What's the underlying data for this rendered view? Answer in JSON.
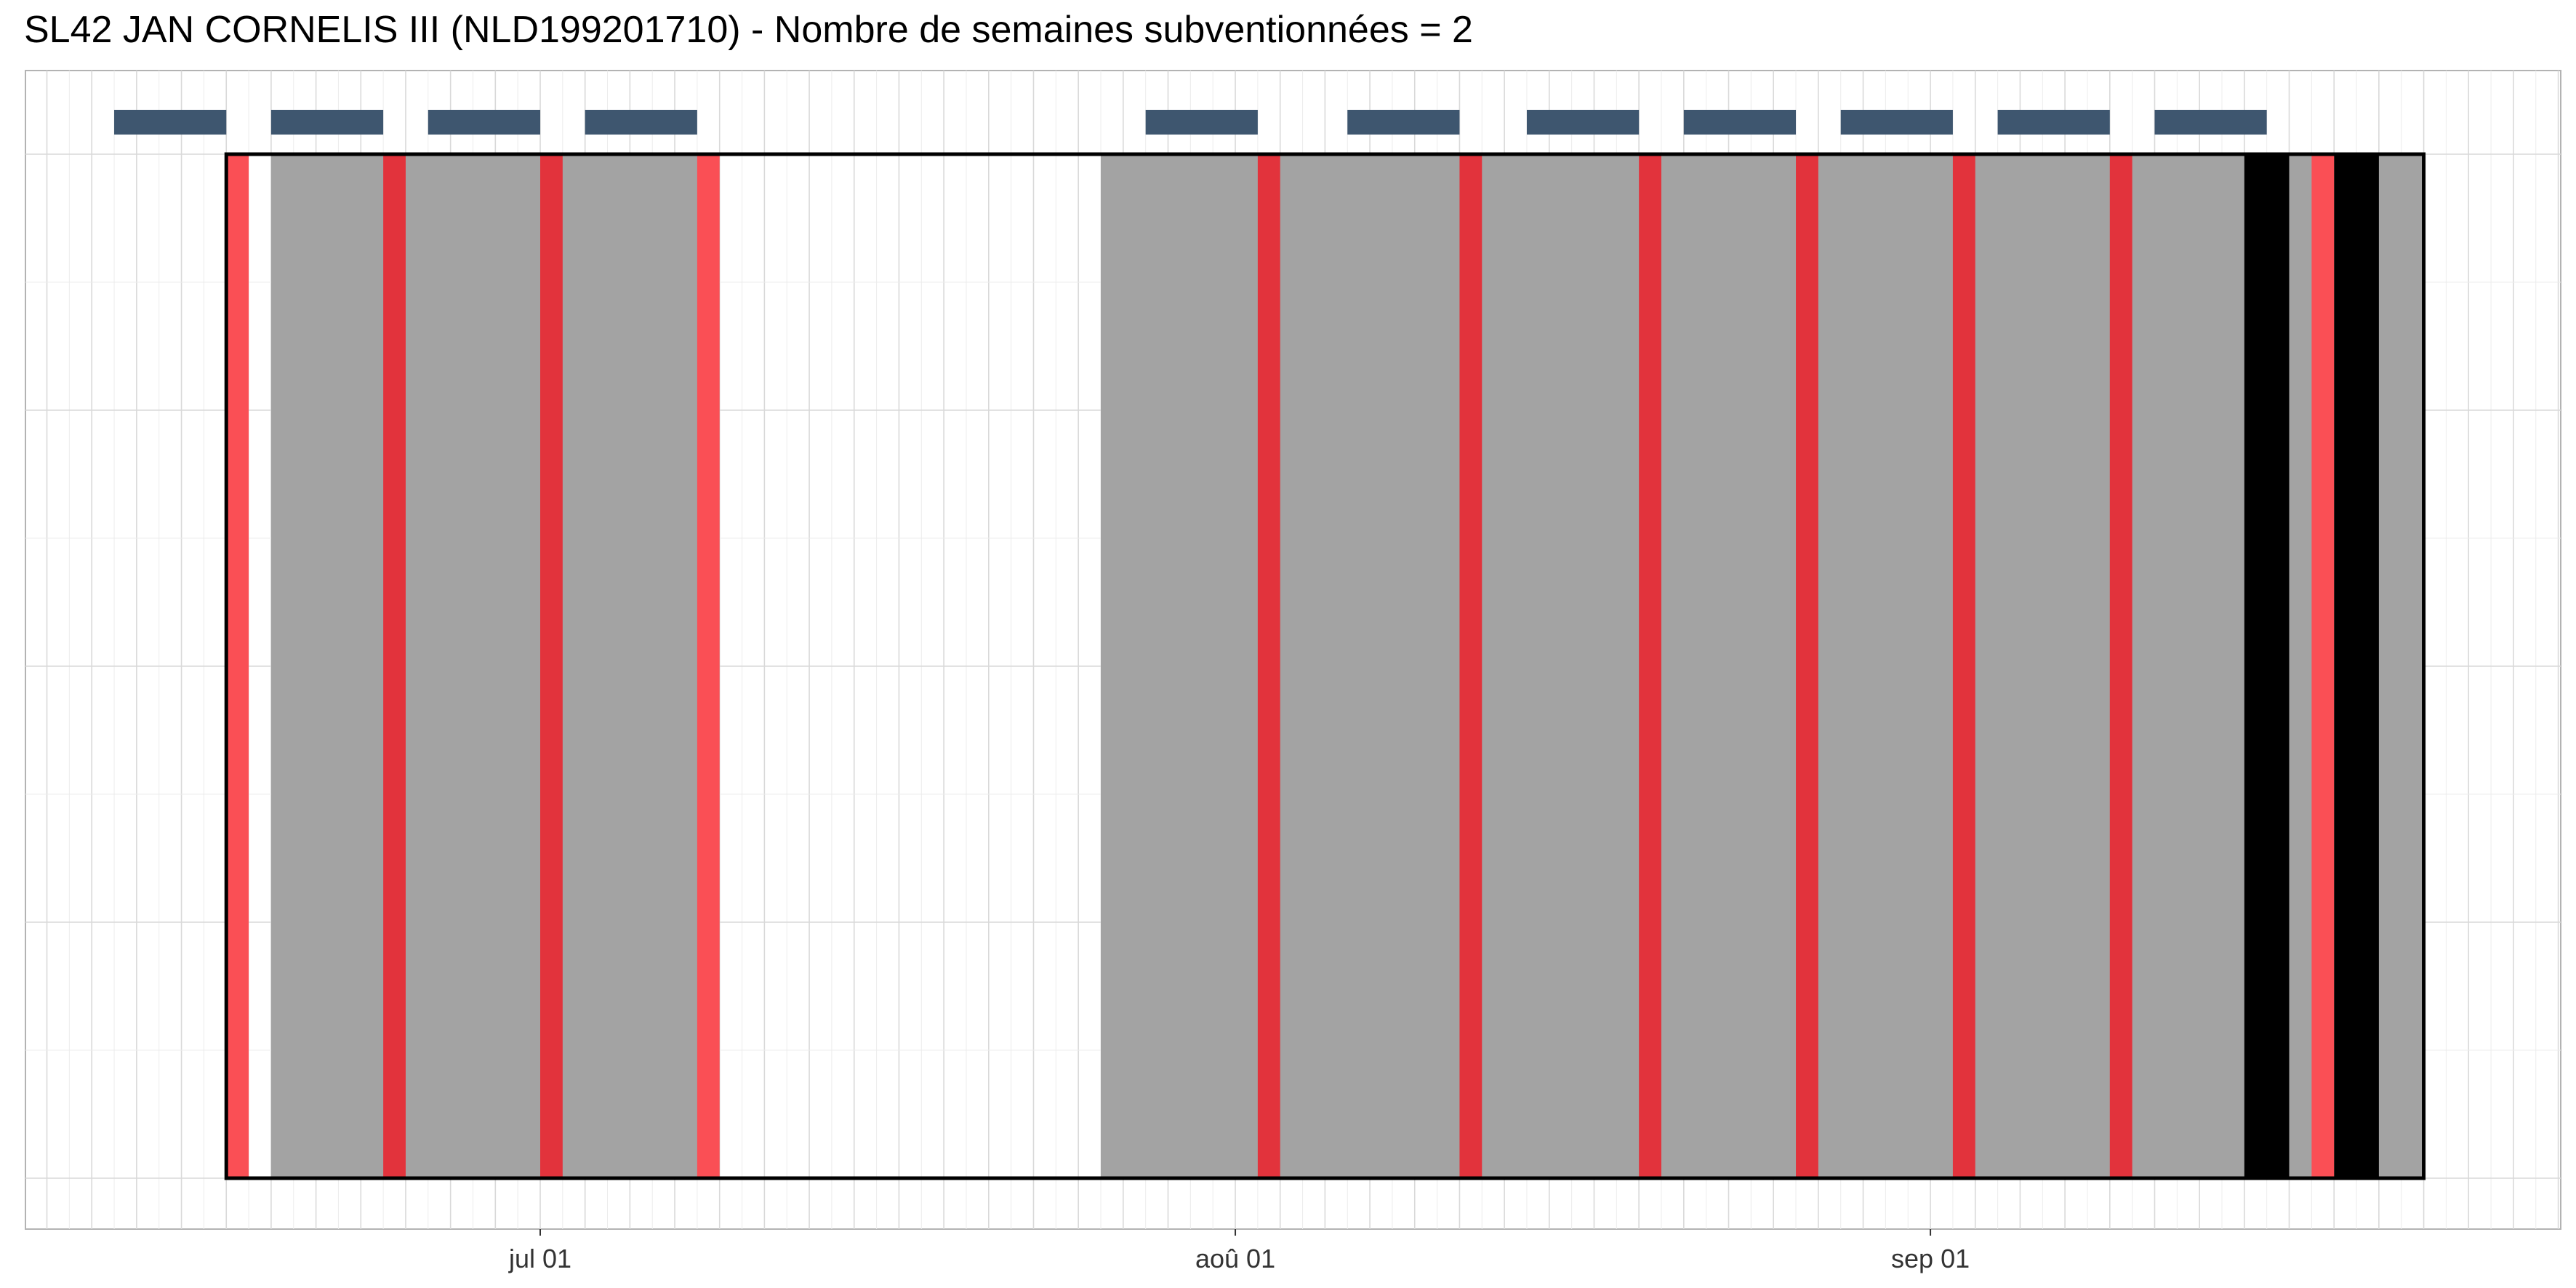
{
  "chart_data": {
    "type": "timeline",
    "title": "SL42 JAN CORNELIS III (NLD199201710) - Nombre de semaines subventionnées = 2",
    "x_axis": {
      "type": "date",
      "range": [
        "2023-06-07",
        "2023-09-30"
      ],
      "ticks": [
        {
          "date": "2023-07-01",
          "label": "jul 01"
        },
        {
          "date": "2023-08-01",
          "label": "aoû 01"
        },
        {
          "date": "2023-09-01",
          "label": "sep 01"
        }
      ]
    },
    "grid": true,
    "subsidy_period": {
      "start": "2023-06-17",
      "end": "2023-09-23"
    },
    "week_markers": [
      {
        "start": "2023-06-12",
        "end": "2023-06-17"
      },
      {
        "start": "2023-06-19",
        "end": "2023-06-24"
      },
      {
        "start": "2023-06-26",
        "end": "2023-07-01"
      },
      {
        "start": "2023-07-03",
        "end": "2023-07-08"
      },
      {
        "start": "2023-07-28",
        "end": "2023-08-02"
      },
      {
        "start": "2023-08-06",
        "end": "2023-08-11"
      },
      {
        "start": "2023-08-14",
        "end": "2023-08-19"
      },
      {
        "start": "2023-08-21",
        "end": "2023-08-26"
      },
      {
        "start": "2023-08-28",
        "end": "2023-09-02"
      },
      {
        "start": "2023-09-04",
        "end": "2023-09-09"
      },
      {
        "start": "2023-09-11",
        "end": "2023-09-16"
      }
    ],
    "gray_periods": [
      {
        "start": "2023-06-19",
        "end": "2023-07-09"
      },
      {
        "start": "2023-07-26",
        "end": "2023-09-23"
      }
    ],
    "black_periods": [
      {
        "start": "2023-09-15",
        "end": "2023-09-17"
      },
      {
        "start": "2023-09-19",
        "end": "2023-09-21"
      }
    ],
    "red_days": [
      {
        "date": "2023-06-17",
        "light": true
      },
      {
        "date": "2023-06-24",
        "light": false
      },
      {
        "date": "2023-07-01",
        "light": false
      },
      {
        "date": "2023-07-08",
        "light": true
      },
      {
        "date": "2023-08-02",
        "light": false
      },
      {
        "date": "2023-08-11",
        "light": false
      },
      {
        "date": "2023-08-19",
        "light": false
      },
      {
        "date": "2023-08-26",
        "light": false
      },
      {
        "date": "2023-09-02",
        "light": false
      },
      {
        "date": "2023-09-09",
        "light": false
      },
      {
        "date": "2023-09-18",
        "light": true
      }
    ],
    "colors": {
      "gray": "#a3a3a3",
      "black": "#000000",
      "red": "#e2333c",
      "red_light": "#fa4f55",
      "week_marker": "#3e566f",
      "grid_major": "#d9d9d9",
      "grid_minor": "#ececec",
      "panel_border": "#b3b3b3"
    }
  }
}
